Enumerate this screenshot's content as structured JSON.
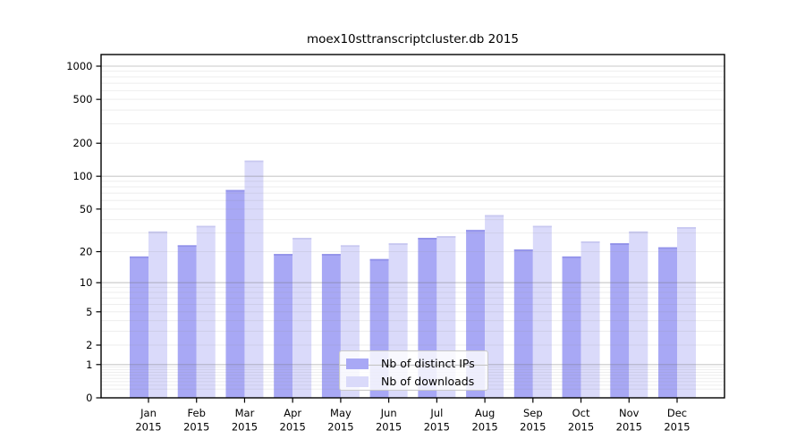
{
  "figure": {
    "background": "#ffffff"
  },
  "chart_data": {
    "type": "bar",
    "title": "moex10sttranscriptcluster.db 2015",
    "categories": [
      "Jan",
      "Feb",
      "Mar",
      "Apr",
      "May",
      "Jun",
      "Jul",
      "Aug",
      "Sep",
      "Oct",
      "Nov",
      "Dec"
    ],
    "year_label": "2015",
    "series": [
      {
        "name": "Nb of distinct IPs",
        "color": "#a8a8f5",
        "edge_color": "#9292e9",
        "values": [
          18,
          23,
          75,
          19,
          19,
          17,
          27,
          32,
          21,
          18,
          24,
          22
        ]
      },
      {
        "name": "Nb of downloads",
        "color": "#dadafa",
        "edge_color": "#c8c8f0",
        "values": [
          31,
          35,
          139,
          27,
          23,
          24,
          28,
          44,
          35,
          25,
          31,
          34
        ]
      }
    ],
    "y_axis": {
      "scale": "log1p",
      "ticks": [
        0,
        1,
        2,
        5,
        10,
        20,
        50,
        100,
        200,
        500,
        1000
      ],
      "ylim": [
        0,
        1000
      ]
    },
    "grid": {
      "on": true,
      "major_color": "rgba(110,110,110,0.38)",
      "minor_color": "rgba(140,140,140,0.15)"
    },
    "legend": {
      "position": "lower center"
    }
  }
}
